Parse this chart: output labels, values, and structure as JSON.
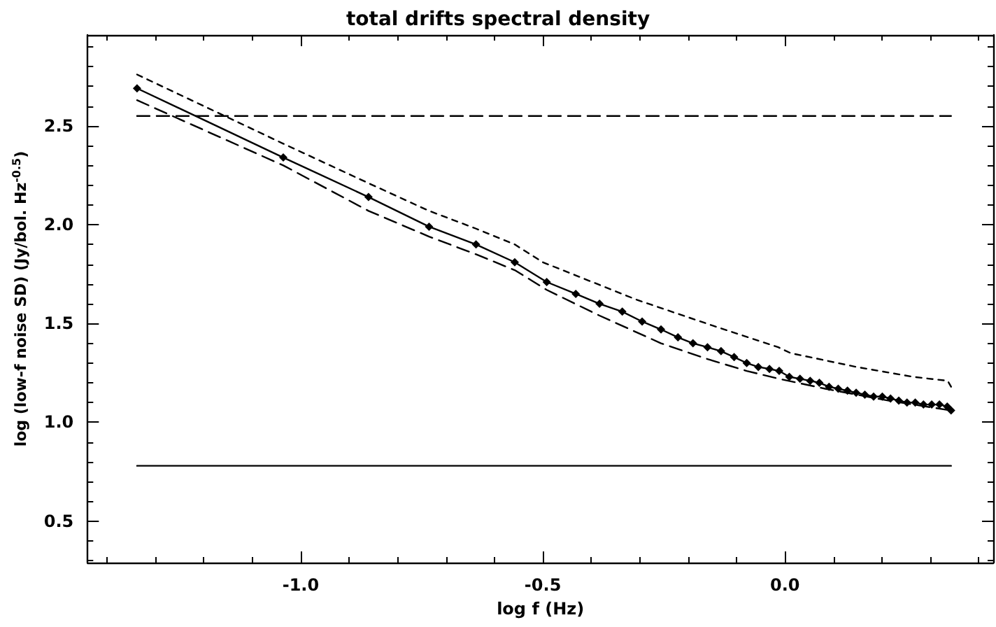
{
  "chart_data": {
    "type": "line",
    "title": "total drifts spectral density",
    "xlabel": "log f (Hz)",
    "ylabel": "log (low-f noise SD) (Jy/bol. Hz$^{-0.5}$)",
    "xlim": [
      -1.44,
      0.43
    ],
    "ylim": [
      0.29,
      2.96
    ],
    "xticks": [
      {
        "value": -1.4,
        "label": null
      },
      {
        "value": -1.3,
        "label": null
      },
      {
        "value": -1.2,
        "label": null
      },
      {
        "value": -1.1,
        "label": null
      },
      {
        "value": -1.0,
        "label": "-1.0"
      },
      {
        "value": -0.9,
        "label": null
      },
      {
        "value": -0.8,
        "label": null
      },
      {
        "value": -0.7,
        "label": null
      },
      {
        "value": -0.6,
        "label": null
      },
      {
        "value": -0.5,
        "label": "-0.5"
      },
      {
        "value": -0.4,
        "label": null
      },
      {
        "value": -0.3,
        "label": null
      },
      {
        "value": -0.2,
        "label": null
      },
      {
        "value": -0.1,
        "label": null
      },
      {
        "value": 0.0,
        "label": "0.0"
      },
      {
        "value": 0.1,
        "label": null
      },
      {
        "value": 0.2,
        "label": null
      },
      {
        "value": 0.3,
        "label": null
      },
      {
        "value": 0.4,
        "label": null
      }
    ],
    "yticks": [
      {
        "value": 0.3,
        "label": null
      },
      {
        "value": 0.4,
        "label": null
      },
      {
        "value": 0.5,
        "label": "0.5"
      },
      {
        "value": 0.6,
        "label": null
      },
      {
        "value": 0.7,
        "label": null
      },
      {
        "value": 0.8,
        "label": null
      },
      {
        "value": 0.9,
        "label": null
      },
      {
        "value": 1.0,
        "label": "1.0"
      },
      {
        "value": 1.1,
        "label": null
      },
      {
        "value": 1.2,
        "label": null
      },
      {
        "value": 1.3,
        "label": null
      },
      {
        "value": 1.4,
        "label": null
      },
      {
        "value": 1.5,
        "label": "1.5"
      },
      {
        "value": 1.6,
        "label": null
      },
      {
        "value": 1.7,
        "label": null
      },
      {
        "value": 1.8,
        "label": null
      },
      {
        "value": 1.9,
        "label": null
      },
      {
        "value": 2.0,
        "label": "2.0"
      },
      {
        "value": 2.1,
        "label": null
      },
      {
        "value": 2.2,
        "label": null
      },
      {
        "value": 2.3,
        "label": null
      },
      {
        "value": 2.4,
        "label": null
      },
      {
        "value": 2.5,
        "label": "2.5"
      },
      {
        "value": 2.6,
        "label": null
      },
      {
        "value": 2.7,
        "label": null
      },
      {
        "value": 2.8,
        "label": null
      },
      {
        "value": 2.9,
        "label": null
      }
    ],
    "series": [
      {
        "color": "#000000",
        "marker": "diamond",
        "line_style": "solid",
        "x": [
          -1.338,
          -1.036,
          -0.86,
          -0.735,
          -0.638,
          -0.558,
          -0.492,
          -0.432,
          -0.383,
          -0.336,
          -0.295,
          -0.256,
          -0.221,
          -0.19,
          -0.16,
          -0.132,
          -0.105,
          -0.079,
          -0.055,
          -0.032,
          -0.012,
          0.009,
          0.031,
          0.052,
          0.071,
          0.091,
          0.11,
          0.129,
          0.147,
          0.165,
          0.183,
          0.201,
          0.218,
          0.235,
          0.252,
          0.269,
          0.286,
          0.303,
          0.319,
          0.335,
          0.343
        ],
        "values": [
          2.69,
          2.34,
          2.14,
          1.99,
          1.9,
          1.81,
          1.71,
          1.65,
          1.6,
          1.56,
          1.51,
          1.47,
          1.43,
          1.4,
          1.38,
          1.36,
          1.33,
          1.3,
          1.28,
          1.27,
          1.26,
          1.23,
          1.22,
          1.21,
          1.2,
          1.18,
          1.17,
          1.16,
          1.15,
          1.14,
          1.13,
          1.13,
          1.12,
          1.11,
          1.1,
          1.1,
          1.09,
          1.09,
          1.09,
          1.08,
          1.06
        ]
      },
      {
        "color": "#000000",
        "marker": "none",
        "line_style": "dotted",
        "x": [
          -1.338,
          -1.036,
          -0.86,
          -0.735,
          -0.638,
          -0.558,
          -0.5,
          -0.306,
          -0.15,
          -0.014,
          0.012,
          0.148,
          0.265,
          0.336,
          0.343
        ],
        "values": [
          2.76,
          2.41,
          2.21,
          2.07,
          1.98,
          1.9,
          1.81,
          1.62,
          1.49,
          1.38,
          1.35,
          1.28,
          1.23,
          1.21,
          1.18
        ]
      },
      {
        "color": "#000000",
        "marker": "none",
        "line_style": "dashed",
        "x": [
          -1.338,
          -1.036,
          -0.86,
          -0.735,
          -0.638,
          -0.558,
          -0.492,
          -0.383,
          -0.256,
          -0.16,
          -0.079,
          -0.012,
          0.083,
          0.213,
          0.343
        ],
        "values": [
          2.63,
          2.3,
          2.07,
          1.94,
          1.85,
          1.77,
          1.67,
          1.54,
          1.4,
          1.32,
          1.26,
          1.22,
          1.17,
          1.11,
          1.06
        ]
      },
      {
        "color": "#000000",
        "marker": "none",
        "line_style": "dashed",
        "x": [
          -1.338,
          0.343
        ],
        "values": [
          2.55,
          2.55
        ]
      },
      {
        "color": "#000000",
        "marker": "none",
        "line_style": "solid",
        "x": [
          -1.338,
          0.343
        ],
        "values": [
          0.78,
          0.78
        ]
      }
    ]
  }
}
